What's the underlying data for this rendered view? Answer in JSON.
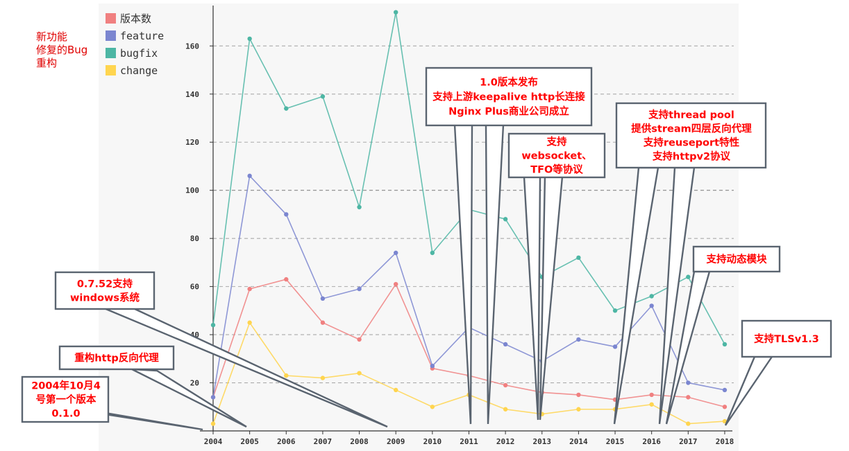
{
  "side_notes": [
    "新功能",
    "修复的Bug",
    "重构"
  ],
  "chart_data": {
    "type": "line",
    "x": [
      "2004",
      "2005",
      "2006",
      "2007",
      "2008",
      "2009",
      "2010",
      "2011",
      "2012",
      "2013",
      "2014",
      "2015",
      "2016",
      "2017",
      "2018"
    ],
    "ylim": [
      0,
      175
    ],
    "yticks": [
      20,
      40,
      60,
      80,
      100,
      120,
      140,
      160
    ],
    "grid": true,
    "legend_position": "top-left",
    "series": [
      {
        "name": "版本数",
        "color": "#f08080",
        "values": [
          14,
          59,
          63,
          45,
          38,
          61,
          26,
          23,
          19,
          16,
          15,
          13,
          15,
          14,
          10
        ]
      },
      {
        "name": "feature",
        "color": "#7b86d0",
        "values": [
          14,
          106,
          90,
          55,
          59,
          74,
          27,
          43,
          36,
          29,
          38,
          35,
          52,
          20,
          17
        ]
      },
      {
        "name": "bugfix",
        "color": "#4db6a4",
        "values": [
          44,
          163,
          134,
          139,
          93,
          174,
          74,
          92,
          88,
          64,
          72,
          50,
          56,
          64,
          36
        ]
      },
      {
        "name": "change",
        "color": "#ffd54f",
        "values": [
          3,
          45,
          23,
          22,
          24,
          17,
          10,
          15,
          9,
          7,
          9,
          9,
          11,
          3,
          4
        ]
      }
    ]
  },
  "callouts": [
    {
      "id": "v010",
      "lines": [
        "2004年10月4",
        "号第一个版本",
        "0.1.0"
      ]
    },
    {
      "id": "reverse-proxy",
      "lines": [
        "重构http反向代理"
      ]
    },
    {
      "id": "windows",
      "lines": [
        "0.7.52支持",
        "windows系统"
      ]
    },
    {
      "id": "v10",
      "lines": [
        "1.0版本发布",
        "支持上游keepalive http长连接",
        "Nginx Plus商业公司成立"
      ]
    },
    {
      "id": "websocket",
      "lines": [
        "支持",
        "websocket、",
        "TFO等协议"
      ]
    },
    {
      "id": "threadpool",
      "lines": [
        "支持thread pool",
        "提供stream四层反向代理",
        "支持reuseport特性",
        "支持httpv2协议"
      ]
    },
    {
      "id": "dynmod",
      "lines": [
        "支持动态模块"
      ]
    },
    {
      "id": "tls13",
      "lines": [
        "支持TLSv1.3"
      ]
    }
  ]
}
